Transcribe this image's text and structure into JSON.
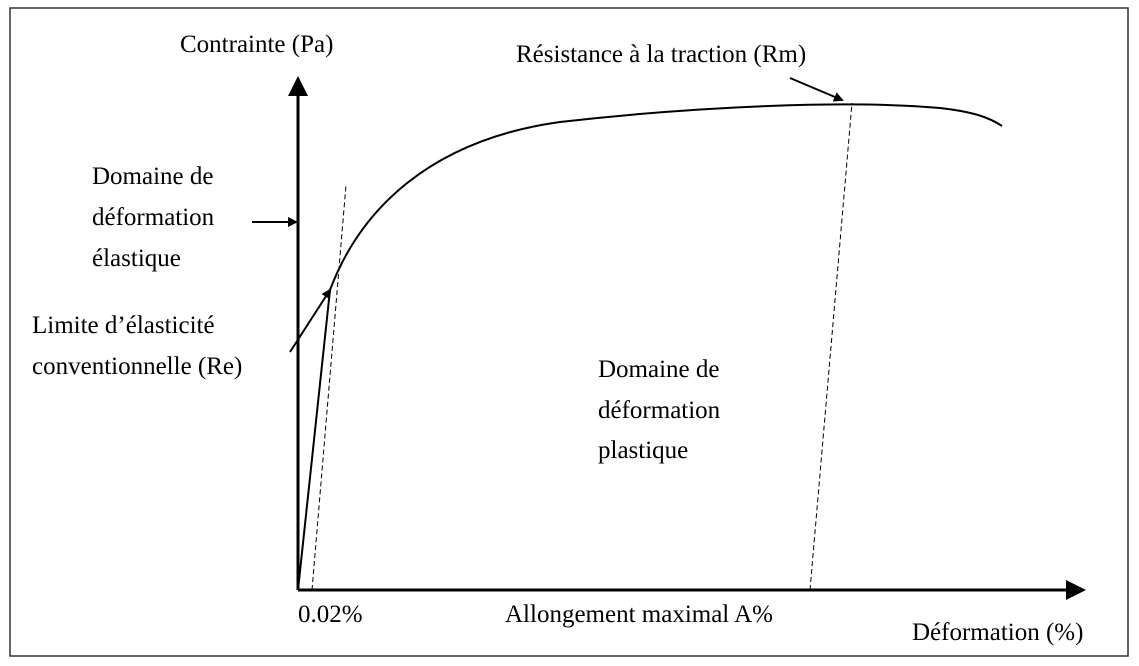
{
  "axes": {
    "y_label": "Contrainte (Pa)",
    "x_label": "Déformation (%)"
  },
  "annotations": {
    "rm": "Résistance à la traction (Rm)",
    "elastic_domain": [
      "Domaine de",
      "déformation",
      "élastique"
    ],
    "re": [
      "Limite d’élasticité",
      "conventionnelle (Re)"
    ],
    "plastic_domain": [
      "Domaine de",
      "déformation",
      "plastique"
    ],
    "offset": "0.02%",
    "elongation": "Allongement maximal A%"
  }
}
